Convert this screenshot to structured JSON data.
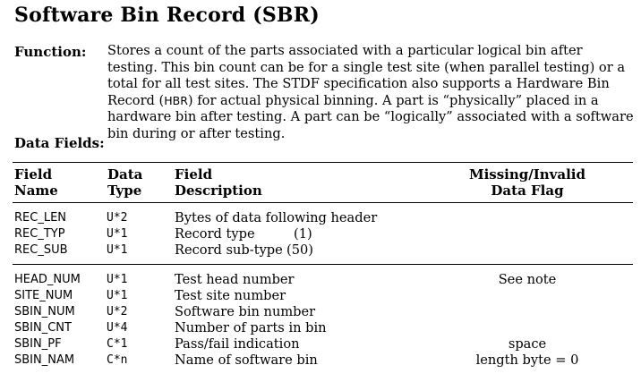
{
  "title": "Software Bin Record (SBR)",
  "function": {
    "label": "Function:",
    "text_before_hbr": "Stores a count of the parts associated with a particular logical bin after testing. This bin count can be for a single test site (when parallel testing) or a total for all test sites. The STDF specification also supports a Hardware Bin Record (",
    "hbr": "HBR",
    "text_after_hbr": ") for actual physical binning. A part is “physically” placed in a hardware bin after testing. A part can be “logically” associated with a software bin during or after testing."
  },
  "data_fields_label": "Data Fields:",
  "table": {
    "headers": {
      "field_name": [
        "Field",
        "Name"
      ],
      "data_type": [
        "Data",
        "Type"
      ],
      "field_description": [
        "Field",
        "Description"
      ],
      "missing_flag": [
        "Missing/Invalid",
        "Data Flag"
      ]
    },
    "header_rows": [
      {
        "name": "REC_LEN",
        "type": "U*2",
        "desc": "Bytes of data following header",
        "value": "",
        "flag": ""
      },
      {
        "name": "REC_TYP",
        "type": "U*1",
        "desc": "Record type",
        "value": "(1)",
        "flag": ""
      },
      {
        "name": "REC_SUB",
        "type": "U*1",
        "desc": "Record sub-type",
        "value": "(50)",
        "flag": ""
      }
    ],
    "body_rows": [
      {
        "name": "HEAD_NUM",
        "type": "U*1",
        "desc": "Test head number",
        "value": "",
        "flag": "See note"
      },
      {
        "name": "SITE_NUM",
        "type": "U*1",
        "desc": "Test site number",
        "value": "",
        "flag": ""
      },
      {
        "name": "SBIN_NUM",
        "type": "U*2",
        "desc": "Software bin number",
        "value": "",
        "flag": ""
      },
      {
        "name": "SBIN_CNT",
        "type": "U*4",
        "desc": "Number of parts in bin",
        "value": "",
        "flag": ""
      },
      {
        "name": "SBIN_PF",
        "type": "C*1",
        "desc": "Pass/fail indication",
        "value": "",
        "flag": "space"
      },
      {
        "name": "SBIN_NAM",
        "type": "C*n",
        "desc": "Name of software bin",
        "value": "",
        "flag": "length byte = 0"
      }
    ]
  }
}
